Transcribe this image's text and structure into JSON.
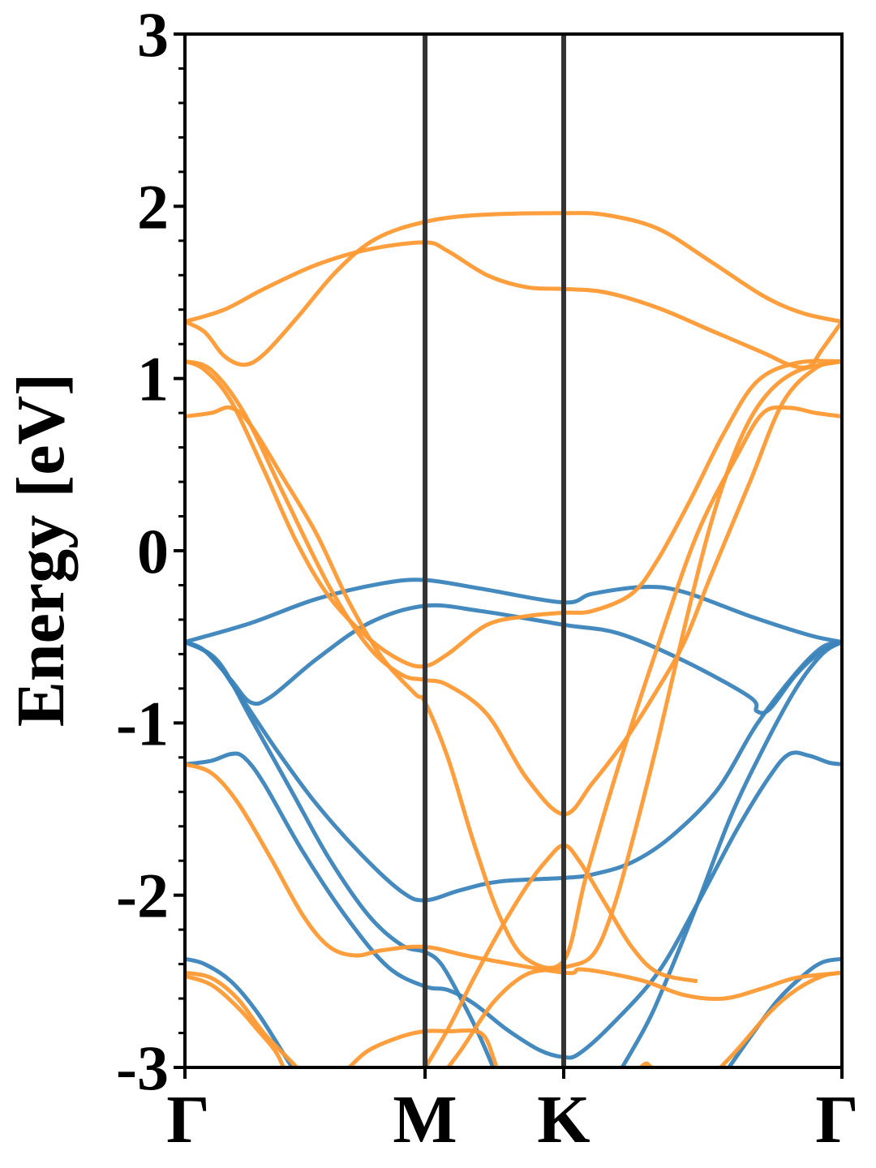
{
  "chart_data": {
    "type": "line",
    "title": "",
    "xlabel": "",
    "ylabel": "Energy [eV]",
    "ylim": [
      -3,
      3
    ],
    "xlim": [
      0,
      1
    ],
    "grid": false,
    "legend": "none",
    "k_points": [
      {
        "label": "Γ",
        "x": 0.0
      },
      {
        "label": "M",
        "x": 0.3655
      },
      {
        "label": "K",
        "x": 0.5765
      },
      {
        "label": "Γ",
        "x": 1.0
      }
    ],
    "y_ticks": [
      {
        "value": 3,
        "label": "3"
      },
      {
        "value": 2,
        "label": "2"
      },
      {
        "value": 1,
        "label": "1"
      },
      {
        "value": 0,
        "label": "0"
      },
      {
        "value": -1,
        "label": "-1"
      },
      {
        "value": -2,
        "label": "-2"
      },
      {
        "value": -3,
        "label": "-3"
      }
    ],
    "colors": {
      "blue": "#3a84bb",
      "orange": "#ff9933",
      "kline": "#333333",
      "axis": "#000000"
    },
    "series": [
      {
        "color": "blue",
        "points": [
          [
            0,
            -0.53
          ],
          [
            0.1,
            -0.42
          ],
          [
            0.2,
            -0.28
          ],
          [
            0.3,
            -0.19
          ],
          [
            0.3655,
            -0.17
          ],
          [
            0.45,
            -0.22
          ],
          [
            0.5765,
            -0.3
          ],
          [
            0.62,
            -0.25
          ],
          [
            0.7,
            -0.21
          ],
          [
            0.76,
            -0.24
          ],
          [
            0.86,
            -0.38
          ],
          [
            0.95,
            -0.49
          ],
          [
            1.0,
            -0.53
          ]
        ]
      },
      {
        "color": "blue",
        "points": [
          [
            0,
            -0.53
          ],
          [
            0.03,
            -0.58
          ],
          [
            0.07,
            -0.75
          ],
          [
            0.1,
            -0.88
          ],
          [
            0.13,
            -0.85
          ],
          [
            0.2,
            -0.63
          ],
          [
            0.28,
            -0.42
          ],
          [
            0.3655,
            -0.32
          ],
          [
            0.45,
            -0.35
          ],
          [
            0.5765,
            -0.43
          ],
          [
            0.66,
            -0.48
          ],
          [
            0.76,
            -0.64
          ],
          [
            0.86,
            -0.85
          ],
          [
            0.87,
            -0.93
          ],
          [
            0.89,
            -0.92
          ],
          [
            0.93,
            -0.72
          ],
          [
            0.97,
            -0.58
          ],
          [
            1.0,
            -0.53
          ]
        ]
      },
      {
        "color": "blue",
        "points": [
          [
            0,
            -0.53
          ],
          [
            0.04,
            -0.61
          ],
          [
            0.08,
            -0.82
          ],
          [
            0.14,
            -1.16
          ],
          [
            0.2,
            -1.47
          ],
          [
            0.27,
            -1.77
          ],
          [
            0.33,
            -1.98
          ],
          [
            0.3655,
            -2.03
          ],
          [
            0.42,
            -1.97
          ],
          [
            0.48,
            -1.92
          ],
          [
            0.5765,
            -1.9
          ],
          [
            0.62,
            -1.88
          ],
          [
            0.68,
            -1.81
          ],
          [
            0.74,
            -1.66
          ],
          [
            0.81,
            -1.39
          ],
          [
            0.87,
            -1.01
          ],
          [
            0.93,
            -0.71
          ],
          [
            0.97,
            -0.56
          ],
          [
            1.0,
            -0.53
          ]
        ]
      },
      {
        "color": "blue",
        "points": [
          [
            0,
            -0.53
          ],
          [
            0.05,
            -0.64
          ],
          [
            0.1,
            -0.97
          ],
          [
            0.16,
            -1.38
          ],
          [
            0.22,
            -1.79
          ],
          [
            0.28,
            -2.12
          ],
          [
            0.33,
            -2.29
          ],
          [
            0.3655,
            -2.33
          ],
          [
            0.39,
            -2.4
          ],
          [
            0.42,
            -2.6
          ],
          [
            0.45,
            -2.83
          ],
          [
            0.48,
            -3.1
          ]
        ]
      },
      {
        "color": "blue",
        "points": [
          [
            0.65,
            -3.1
          ],
          [
            0.7,
            -2.77
          ],
          [
            0.73,
            -2.52
          ],
          [
            0.78,
            -2.05
          ],
          [
            0.83,
            -1.55
          ],
          [
            0.88,
            -1.15
          ],
          [
            0.93,
            -0.8
          ],
          [
            0.97,
            -0.6
          ],
          [
            1.0,
            -0.53
          ]
        ]
      },
      {
        "color": "blue",
        "points": [
          [
            0,
            -1.24
          ],
          [
            0.04,
            -1.22
          ],
          [
            0.07,
            -1.18
          ],
          [
            0.09,
            -1.2
          ],
          [
            0.12,
            -1.35
          ],
          [
            0.18,
            -1.75
          ],
          [
            0.25,
            -2.15
          ],
          [
            0.31,
            -2.42
          ],
          [
            0.3655,
            -2.53
          ],
          [
            0.4,
            -2.55
          ],
          [
            0.44,
            -2.63
          ],
          [
            0.49,
            -2.78
          ],
          [
            0.54,
            -2.9
          ],
          [
            0.5765,
            -2.94
          ],
          [
            0.6,
            -2.92
          ],
          [
            0.65,
            -2.75
          ],
          [
            0.72,
            -2.45
          ],
          [
            0.78,
            -2.05
          ],
          [
            0.84,
            -1.62
          ],
          [
            0.89,
            -1.31
          ],
          [
            0.92,
            -1.18
          ],
          [
            0.95,
            -1.19
          ],
          [
            0.98,
            -1.23
          ],
          [
            1.0,
            -1.24
          ]
        ]
      },
      {
        "color": "blue",
        "points": [
          [
            0,
            -2.37
          ],
          [
            0.03,
            -2.4
          ],
          [
            0.07,
            -2.5
          ],
          [
            0.11,
            -2.68
          ],
          [
            0.15,
            -2.92
          ],
          [
            0.18,
            -3.1
          ]
        ]
      },
      {
        "color": "blue",
        "points": [
          [
            0.81,
            -3.1
          ],
          [
            0.85,
            -2.88
          ],
          [
            0.9,
            -2.62
          ],
          [
            0.94,
            -2.47
          ],
          [
            0.97,
            -2.39
          ],
          [
            1.0,
            -2.37
          ]
        ]
      },
      {
        "color": "orange",
        "points": [
          [
            0,
            1.33
          ],
          [
            0.06,
            1.4
          ],
          [
            0.12,
            1.52
          ],
          [
            0.2,
            1.66
          ],
          [
            0.28,
            1.75
          ],
          [
            0.3655,
            1.79
          ],
          [
            0.4,
            1.74
          ],
          [
            0.46,
            1.6
          ],
          [
            0.52,
            1.53
          ],
          [
            0.5765,
            1.52
          ],
          [
            0.64,
            1.5
          ],
          [
            0.72,
            1.41
          ],
          [
            0.8,
            1.28
          ],
          [
            0.88,
            1.15
          ],
          [
            0.92,
            1.08
          ],
          [
            0.95,
            1.07
          ],
          [
            0.97,
            1.17
          ],
          [
            1.0,
            1.33
          ]
        ]
      },
      {
        "color": "orange",
        "points": [
          [
            0,
            1.33
          ],
          [
            0.03,
            1.27
          ],
          [
            0.06,
            1.13
          ],
          [
            0.09,
            1.08
          ],
          [
            0.12,
            1.14
          ],
          [
            0.17,
            1.35
          ],
          [
            0.23,
            1.62
          ],
          [
            0.29,
            1.81
          ],
          [
            0.3655,
            1.91
          ],
          [
            0.45,
            1.95
          ],
          [
            0.5765,
            1.96
          ],
          [
            0.64,
            1.95
          ],
          [
            0.72,
            1.87
          ],
          [
            0.8,
            1.68
          ],
          [
            0.88,
            1.48
          ],
          [
            0.94,
            1.38
          ],
          [
            1.0,
            1.33
          ]
        ]
      },
      {
        "color": "orange",
        "points": [
          [
            0,
            1.1
          ],
          [
            0.03,
            1.05
          ],
          [
            0.07,
            0.87
          ],
          [
            0.12,
            0.47
          ],
          [
            0.17,
            0.05
          ],
          [
            0.22,
            -0.27
          ],
          [
            0.28,
            -0.51
          ],
          [
            0.33,
            -0.64
          ],
          [
            0.3655,
            -0.67
          ],
          [
            0.4,
            -0.6
          ],
          [
            0.46,
            -0.43
          ],
          [
            0.52,
            -0.38
          ],
          [
            0.5765,
            -0.36
          ],
          [
            0.62,
            -0.35
          ],
          [
            0.68,
            -0.25
          ],
          [
            0.72,
            -0.05
          ],
          [
            0.77,
            0.3
          ],
          [
            0.82,
            0.68
          ],
          [
            0.87,
            0.98
          ],
          [
            0.93,
            1.09
          ],
          [
            1.0,
            1.1
          ]
        ]
      },
      {
        "color": "orange",
        "points": [
          [
            0,
            1.1
          ],
          [
            0.04,
            1.05
          ],
          [
            0.09,
            0.8
          ],
          [
            0.15,
            0.33
          ],
          [
            0.22,
            -0.21
          ],
          [
            0.28,
            -0.56
          ],
          [
            0.33,
            -0.72
          ],
          [
            0.3655,
            -0.75
          ],
          [
            0.4,
            -0.78
          ],
          [
            0.46,
            -0.95
          ],
          [
            0.52,
            -1.32
          ],
          [
            0.5765,
            -1.53
          ],
          [
            0.62,
            -1.35
          ],
          [
            0.67,
            -1.1
          ],
          [
            0.72,
            -0.8
          ],
          [
            0.76,
            -0.53
          ],
          [
            0.8,
            -0.15
          ],
          [
            0.86,
            0.4
          ],
          [
            0.91,
            0.86
          ],
          [
            0.96,
            1.06
          ],
          [
            1.0,
            1.1
          ]
        ]
      },
      {
        "color": "orange",
        "points": [
          [
            0,
            0.78
          ],
          [
            0.04,
            0.8
          ],
          [
            0.07,
            0.83
          ],
          [
            0.1,
            0.73
          ],
          [
            0.15,
            0.42
          ],
          [
            0.2,
            0.1
          ],
          [
            0.25,
            -0.3
          ],
          [
            0.3,
            -0.62
          ],
          [
            0.35,
            -0.83
          ],
          [
            0.3655,
            -0.88
          ],
          [
            0.4,
            -1.2
          ],
          [
            0.44,
            -1.7
          ],
          [
            0.48,
            -2.13
          ],
          [
            0.52,
            -2.37
          ],
          [
            0.5765,
            -2.38
          ],
          [
            0.61,
            -1.9
          ],
          [
            0.66,
            -1.25
          ],
          [
            0.72,
            -0.55
          ],
          [
            0.78,
            0.1
          ],
          [
            0.84,
            0.55
          ],
          [
            0.88,
            0.8
          ],
          [
            0.92,
            0.83
          ],
          [
            0.96,
            0.8
          ],
          [
            1.0,
            0.78
          ]
        ]
      },
      {
        "color": "orange",
        "points": [
          [
            0,
            -1.24
          ],
          [
            0.04,
            -1.29
          ],
          [
            0.08,
            -1.46
          ],
          [
            0.13,
            -1.78
          ],
          [
            0.18,
            -2.12
          ],
          [
            0.22,
            -2.3
          ],
          [
            0.26,
            -2.35
          ],
          [
            0.3,
            -2.32
          ],
          [
            0.3655,
            -2.3
          ],
          [
            0.44,
            -2.36
          ],
          [
            0.5765,
            -2.45
          ],
          [
            0.6,
            -2.43
          ],
          [
            0.64,
            -2.45
          ],
          [
            0.7,
            -2.5
          ],
          [
            0.76,
            -2.58
          ],
          [
            0.82,
            -2.6
          ],
          [
            0.88,
            -2.54
          ],
          [
            0.93,
            -2.48
          ],
          [
            1.0,
            -2.45
          ]
        ]
      },
      {
        "color": "orange",
        "points": [
          [
            0,
            -2.45
          ],
          [
            0.04,
            -2.48
          ],
          [
            0.08,
            -2.6
          ],
          [
            0.12,
            -2.8
          ],
          [
            0.17,
            -3.0
          ],
          [
            0.19,
            -3.1
          ]
        ]
      },
      {
        "color": "orange",
        "points": [
          [
            0,
            -2.47
          ],
          [
            0.04,
            -2.52
          ],
          [
            0.08,
            -2.65
          ],
          [
            0.11,
            -2.78
          ],
          [
            0.14,
            -2.92
          ],
          [
            0.16,
            -3.1
          ]
        ]
      },
      {
        "color": "orange",
        "points": [
          [
            0.79,
            -3.1
          ],
          [
            0.84,
            -2.9
          ],
          [
            0.89,
            -2.68
          ],
          [
            0.93,
            -2.55
          ],
          [
            0.97,
            -2.47
          ],
          [
            1.0,
            -2.45
          ]
        ]
      },
      {
        "color": "orange",
        "points": [
          [
            0.25,
            -3.0
          ],
          [
            0.28,
            -2.9
          ],
          [
            0.33,
            -2.82
          ],
          [
            0.3655,
            -2.79
          ],
          [
            0.4,
            -2.79
          ],
          [
            0.45,
            -2.8
          ],
          [
            0.47,
            -2.95
          ],
          [
            0.48,
            -3.1
          ]
        ]
      },
      {
        "color": "orange",
        "points": [
          [
            0.65,
            -3.1
          ],
          [
            0.68,
            -3.05
          ],
          [
            0.7,
            -2.98
          ],
          [
            0.71,
            -3.0
          ],
          [
            0.74,
            -3.1
          ]
        ]
      },
      {
        "color": "orange",
        "points": [
          [
            0.35,
            -3.1
          ],
          [
            0.4,
            -2.78
          ],
          [
            0.44,
            -2.48
          ],
          [
            0.48,
            -2.2
          ],
          [
            0.52,
            -1.95
          ],
          [
            0.55,
            -1.8
          ],
          [
            0.5765,
            -1.71
          ],
          [
            0.6,
            -1.8
          ],
          [
            0.64,
            -2.05
          ],
          [
            0.68,
            -2.3
          ],
          [
            0.72,
            -2.45
          ],
          [
            0.78,
            -2.5
          ]
        ]
      },
      {
        "color": "orange",
        "points": [
          [
            0.38,
            -3.1
          ],
          [
            0.42,
            -2.9
          ],
          [
            0.47,
            -2.62
          ],
          [
            0.52,
            -2.46
          ],
          [
            0.5765,
            -2.42
          ],
          [
            0.62,
            -2.35
          ],
          [
            0.65,
            -2.1
          ],
          [
            0.68,
            -1.7
          ],
          [
            0.72,
            -1.1
          ],
          [
            0.76,
            -0.45
          ],
          [
            0.8,
            0.15
          ],
          [
            0.84,
            0.6
          ],
          [
            0.88,
            0.88
          ],
          [
            0.93,
            1.04
          ],
          [
            1.0,
            1.1
          ]
        ]
      }
    ]
  }
}
